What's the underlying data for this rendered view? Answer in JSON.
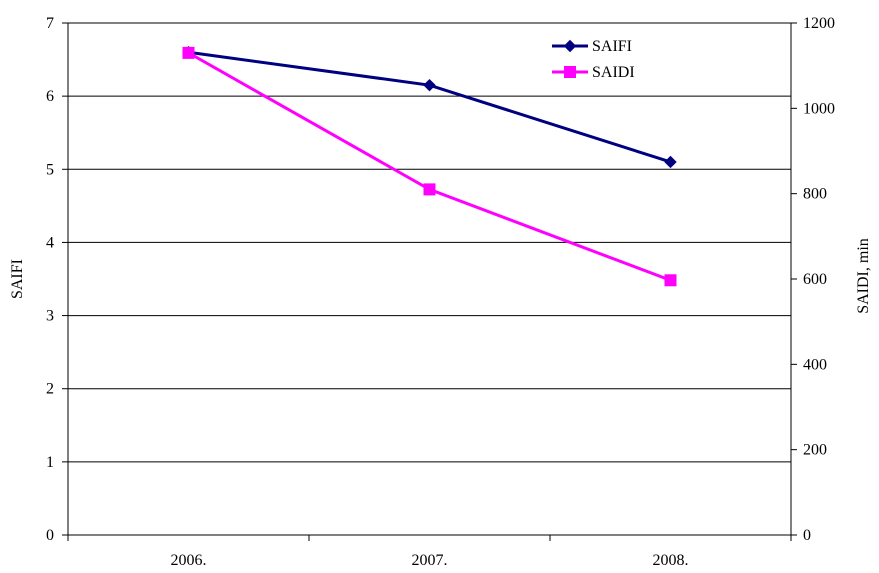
{
  "chart_data": {
    "type": "line",
    "categories": [
      "2006.",
      "2007.",
      "2008."
    ],
    "series": [
      {
        "name": "SAIFI",
        "axis": "left",
        "color": "#000080",
        "marker": "diamond",
        "values": [
          6.6,
          6.15,
          5.1
        ]
      },
      {
        "name": "SAIDI",
        "axis": "right",
        "color": "#ff00ff",
        "marker": "square",
        "values": [
          1130,
          810,
          597
        ]
      }
    ],
    "y_left": {
      "label": "SAIFI",
      "ylim": [
        0,
        7
      ],
      "ticks": [
        "0",
        "1",
        "2",
        "3",
        "4",
        "5",
        "6",
        "7"
      ]
    },
    "y_right": {
      "label": "SAIDI, min",
      "ylim": [
        0,
        1200
      ],
      "ticks": [
        "0",
        "200",
        "400",
        "600",
        "800",
        "1000",
        "1200"
      ]
    },
    "grid": true,
    "legend": "top-right"
  }
}
